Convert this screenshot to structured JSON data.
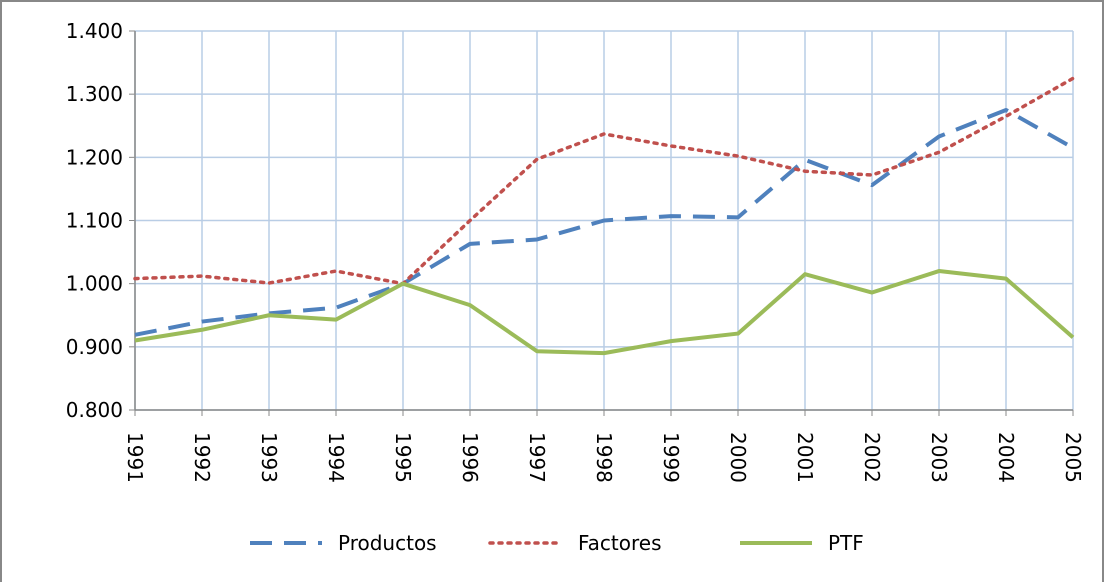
{
  "chart_data": {
    "type": "line",
    "categories": [
      "1991",
      "1992",
      "1993",
      "1994",
      "1995",
      "1996",
      "1997",
      "1998",
      "1999",
      "2000",
      "2001",
      "2002",
      "2003",
      "2004",
      "2005"
    ],
    "series": [
      {
        "name": "Productos",
        "color": "#4f81bd",
        "style": "dashed",
        "values": [
          0.919,
          0.94,
          0.953,
          0.962,
          1.0,
          1.063,
          1.07,
          1.1,
          1.107,
          1.105,
          1.196,
          1.156,
          1.233,
          1.275,
          1.215
        ]
      },
      {
        "name": "Factores",
        "color": "#c0504d",
        "style": "dotted",
        "values": [
          1.008,
          1.012,
          1.001,
          1.02,
          1.0,
          1.1,
          1.197,
          1.237,
          1.218,
          1.202,
          1.178,
          1.172,
          1.208,
          1.265,
          1.325
        ]
      },
      {
        "name": "PTF",
        "color": "#9bbb59",
        "style": "solid",
        "values": [
          0.91,
          0.927,
          0.95,
          0.943,
          1.0,
          0.966,
          0.893,
          0.89,
          0.909,
          0.921,
          1.015,
          0.986,
          1.02,
          1.008,
          0.915
        ]
      }
    ],
    "ylim": [
      0.8,
      1.4
    ],
    "yticks": [
      {
        "value": 0.8,
        "label": "0.800"
      },
      {
        "value": 0.9,
        "label": "0.900"
      },
      {
        "value": 1.0,
        "label": "1.000"
      },
      {
        "value": 1.1,
        "label": "1.100"
      },
      {
        "value": 1.2,
        "label": "1.200"
      },
      {
        "value": 1.3,
        "label": "1.300"
      },
      {
        "value": 1.4,
        "label": "1.400"
      }
    ],
    "grid": true,
    "legend": "bottom"
  }
}
